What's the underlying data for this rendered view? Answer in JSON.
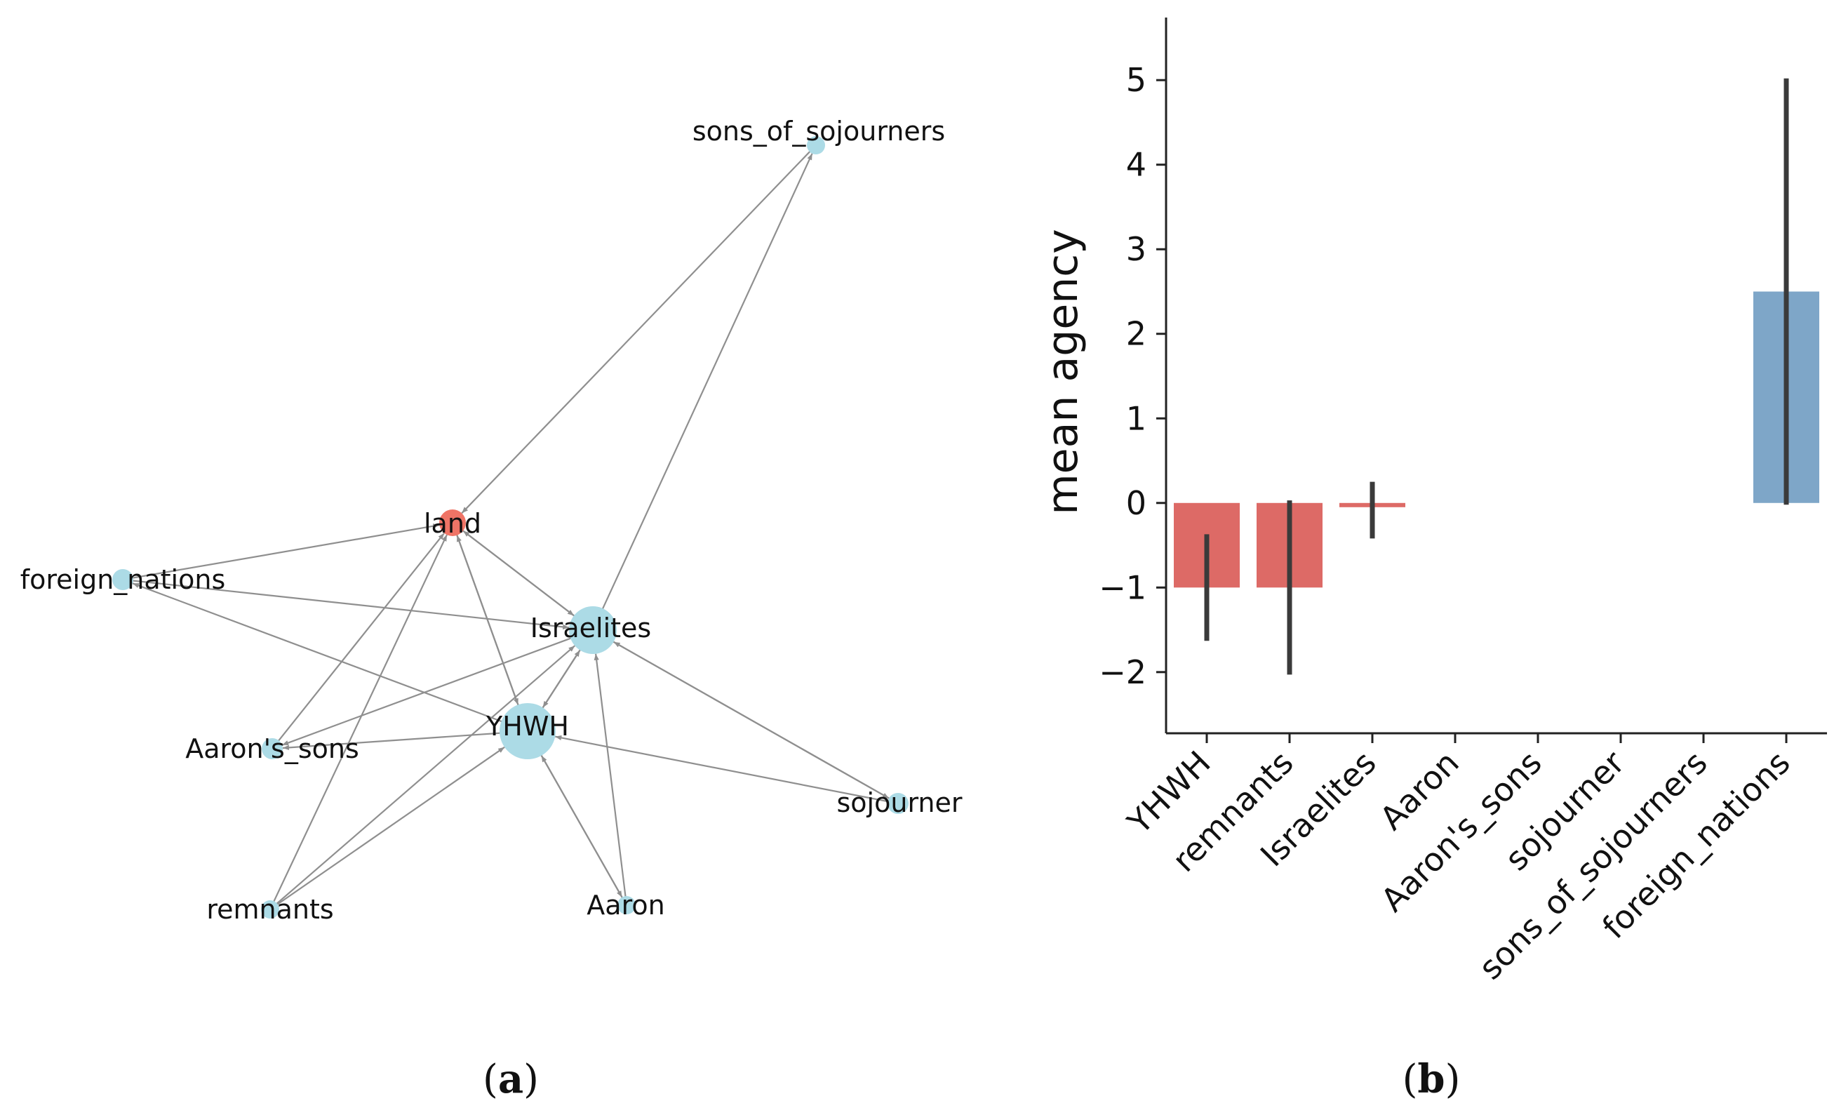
{
  "panels": {
    "a": {
      "letter": "a"
    },
    "b": {
      "letter": "b"
    }
  },
  "colors": {
    "negative": "#dd6a66",
    "positive": "#7ea6c8",
    "node_default": "#acdbe6",
    "node_highlight": "#ef7466",
    "edge": "#8f8f8f",
    "errorbar": "#3a3a3a"
  },
  "chart_data": [
    {
      "type": "network",
      "title": "",
      "nodes": [
        {
          "id": "sons_of_sojourners",
          "label": "sons_of_sojourners",
          "degree": 0,
          "highlight": false
        },
        {
          "id": "land",
          "label": "land",
          "degree": 2,
          "highlight": true
        },
        {
          "id": "foreign_nations",
          "label": "foreign_nations",
          "degree": 1,
          "highlight": false
        },
        {
          "id": "Israelites",
          "label": "Israelites",
          "degree": 4,
          "highlight": false
        },
        {
          "id": "YHWH",
          "label": "YHWH",
          "degree": 5,
          "highlight": false
        },
        {
          "id": "Aaron's_sons",
          "label": "Aaron's_sons",
          "degree": 1,
          "highlight": false
        },
        {
          "id": "sojourner",
          "label": "sojourner",
          "degree": 1,
          "highlight": false
        },
        {
          "id": "remnants",
          "label": "remnants",
          "degree": 0,
          "highlight": false
        },
        {
          "id": "Aaron",
          "label": "Aaron",
          "degree": 0,
          "highlight": false
        }
      ],
      "edges": [
        {
          "source": "sons_of_sojourners",
          "target": "land"
        },
        {
          "source": "Israelites",
          "target": "sons_of_sojourners"
        },
        {
          "source": "foreign_nations",
          "target": "land"
        },
        {
          "source": "foreign_nations",
          "target": "Israelites"
        },
        {
          "source": "YHWH",
          "target": "foreign_nations"
        },
        {
          "source": "Israelites",
          "target": "land"
        },
        {
          "source": "land",
          "target": "Israelites"
        },
        {
          "source": "YHWH",
          "target": "land"
        },
        {
          "source": "land",
          "target": "YHWH"
        },
        {
          "source": "Aaron's_sons",
          "target": "land"
        },
        {
          "source": "remnants",
          "target": "land"
        },
        {
          "source": "Israelites",
          "target": "Aaron's_sons"
        },
        {
          "source": "YHWH",
          "target": "Aaron's_sons"
        },
        {
          "source": "remnants",
          "target": "YHWH"
        },
        {
          "source": "remnants",
          "target": "Israelites"
        },
        {
          "source": "Israelites",
          "target": "YHWH"
        },
        {
          "source": "YHWH",
          "target": "Israelites"
        },
        {
          "source": "Aaron",
          "target": "YHWH"
        },
        {
          "source": "YHWH",
          "target": "Aaron"
        },
        {
          "source": "Aaron",
          "target": "Israelites"
        },
        {
          "source": "sojourner",
          "target": "YHWH"
        },
        {
          "source": "Israelites",
          "target": "sojourner"
        },
        {
          "source": "sojourner",
          "target": "Israelites"
        }
      ]
    },
    {
      "type": "bar",
      "title": "",
      "xlabel": "",
      "ylabel": "mean agency",
      "categories": [
        "YHWH",
        "remnants",
        "Israelites",
        "Aaron",
        "Aaron's_sons",
        "sojourner",
        "sons_of_sojourners",
        "foreign_nations"
      ],
      "values": [
        -1.0,
        -1.0,
        -0.05,
        0,
        0,
        0,
        0,
        2.5
      ],
      "error_low": [
        -1.63,
        -2.03,
        -0.42,
        null,
        null,
        null,
        null,
        -0.02
      ],
      "error_high": [
        -0.37,
        0.03,
        0.25,
        null,
        null,
        null,
        null,
        5.02
      ],
      "bar_colors": [
        "negative",
        "negative",
        "negative",
        "negative",
        "negative",
        "negative",
        "negative",
        "positive"
      ],
      "yticks": [
        -2,
        -1,
        0,
        1,
        2,
        3,
        4,
        5
      ],
      "ytick_labels": [
        "−2",
        "−1",
        "0",
        "1",
        "2",
        "3",
        "4",
        "5"
      ],
      "ylim": [
        -2.35,
        5.35
      ],
      "grid": false,
      "legend": "none"
    }
  ]
}
